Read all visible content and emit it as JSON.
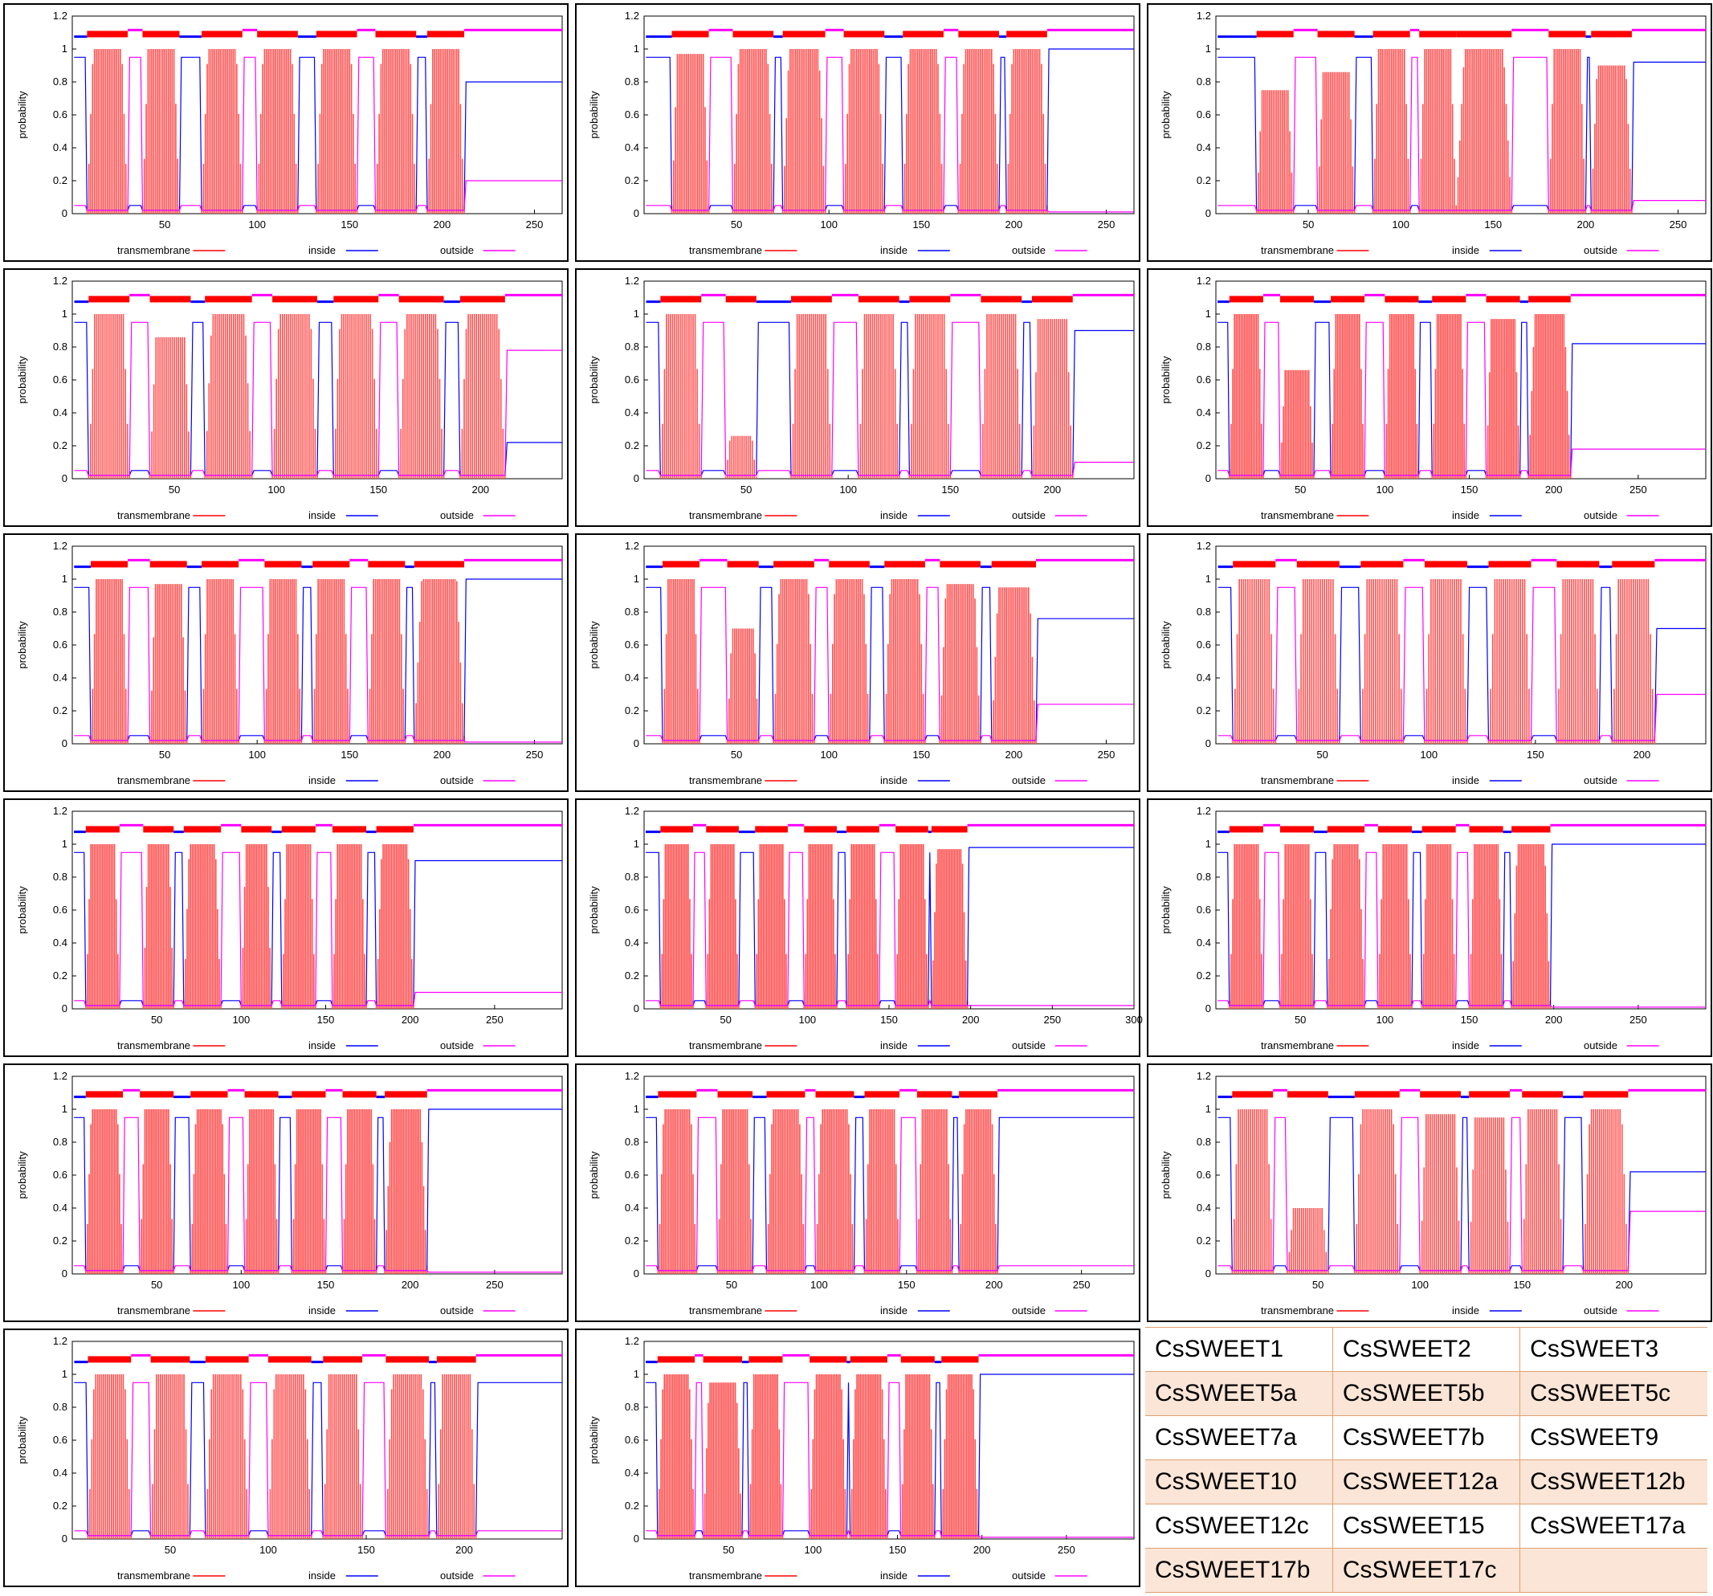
{
  "chart_data": {
    "type": "bar",
    "common": {
      "ylabel": "probability",
      "y_ticks": [
        "0",
        "0.2",
        "0.4",
        "0.6",
        "0.8",
        "1",
        "1.2"
      ],
      "ylim": [
        0,
        1.2
      ],
      "legend": [
        {
          "name": "transmembrane",
          "color": "#ff0000"
        },
        {
          "name": "inside",
          "color": "#0000ff"
        },
        {
          "name": "outside",
          "color": "#ff00ff"
        }
      ]
    },
    "panels": [
      {
        "xmax": 265,
        "xticks": [
          "50",
          "100",
          "150",
          "200",
          "250"
        ],
        "tm": [
          [
            8,
            30
          ],
          [
            38,
            58
          ],
          [
            70,
            92
          ],
          [
            100,
            122
          ],
          [
            132,
            154
          ],
          [
            164,
            186
          ],
          [
            192,
            212
          ]
        ],
        "heights": [
          1,
          1,
          1,
          1,
          1,
          1,
          1
        ],
        "tail_in": 0.8
      },
      {
        "xmax": 265,
        "xticks": [
          "50",
          "100",
          "150",
          "200",
          "250"
        ],
        "tm": [
          [
            15,
            35
          ],
          [
            48,
            70
          ],
          [
            75,
            98
          ],
          [
            108,
            130
          ],
          [
            140,
            162
          ],
          [
            170,
            192
          ],
          [
            196,
            218
          ]
        ],
        "heights": [
          0.97,
          1,
          1,
          1,
          1,
          1,
          1
        ],
        "tail_in": 1.0
      },
      {
        "xmax": 265,
        "xticks": [
          "50",
          "100",
          "150",
          "200",
          "250"
        ],
        "tm": [
          [
            22,
            42
          ],
          [
            55,
            75
          ],
          [
            85,
            105
          ],
          [
            110,
            130
          ],
          [
            130,
            160
          ],
          [
            180,
            200
          ],
          [
            203,
            225
          ]
        ],
        "heights": [
          0.75,
          0.86,
          1,
          1,
          1,
          1,
          0.9
        ],
        "tail_in": 0.92
      },
      {
        "xmax": 240,
        "xticks": [
          "50",
          "100",
          "150",
          "200"
        ],
        "tm": [
          [
            8,
            28
          ],
          [
            38,
            58
          ],
          [
            65,
            88
          ],
          [
            98,
            120
          ],
          [
            128,
            150
          ],
          [
            160,
            182
          ],
          [
            190,
            212
          ]
        ],
        "heights": [
          1,
          0.86,
          1,
          1,
          1,
          1,
          1
        ],
        "tail_in": 0.22
      },
      {
        "xmax": 240,
        "xticks": [
          "50",
          "100",
          "150",
          "200"
        ],
        "tm": [
          [
            8,
            28
          ],
          [
            40,
            55
          ],
          [
            72,
            92
          ],
          [
            105,
            125
          ],
          [
            130,
            150
          ],
          [
            165,
            185
          ],
          [
            190,
            210
          ]
        ],
        "heights": [
          1,
          0.26,
          1,
          1,
          1,
          1,
          0.97
        ],
        "tail_in": 0.9
      },
      {
        "xmax": 290,
        "xticks": [
          "50",
          "100",
          "150",
          "200",
          "250"
        ],
        "tm": [
          [
            8,
            28
          ],
          [
            38,
            58
          ],
          [
            68,
            88
          ],
          [
            100,
            120
          ],
          [
            128,
            148
          ],
          [
            160,
            180
          ],
          [
            185,
            210
          ]
        ],
        "heights": [
          1,
          0.66,
          1,
          1,
          1,
          0.97,
          1
        ],
        "tail_in": 0.82
      },
      {
        "xmax": 265,
        "xticks": [
          "50",
          "100",
          "150",
          "200",
          "250"
        ],
        "tm": [
          [
            10,
            30
          ],
          [
            42,
            62
          ],
          [
            70,
            90
          ],
          [
            104,
            124
          ],
          [
            130,
            150
          ],
          [
            160,
            180
          ],
          [
            185,
            212
          ]
        ],
        "heights": [
          1,
          0.97,
          1,
          1,
          1,
          1,
          1
        ],
        "tail_in": 1.0
      },
      {
        "xmax": 265,
        "xticks": [
          "50",
          "100",
          "150",
          "200",
          "250"
        ],
        "tm": [
          [
            10,
            30
          ],
          [
            45,
            62
          ],
          [
            70,
            92
          ],
          [
            100,
            122
          ],
          [
            130,
            152
          ],
          [
            160,
            182
          ],
          [
            188,
            212
          ]
        ],
        "heights": [
          1,
          0.7,
          1,
          1,
          1,
          0.97,
          0.95
        ],
        "tail_in": 0.76
      },
      {
        "xmax": 230,
        "xticks": [
          "50",
          "100",
          "150",
          "200"
        ],
        "tm": [
          [
            8,
            28
          ],
          [
            38,
            58
          ],
          [
            68,
            88
          ],
          [
            98,
            118
          ],
          [
            128,
            148
          ],
          [
            160,
            180
          ],
          [
            186,
            206
          ]
        ],
        "heights": [
          1,
          1,
          1,
          1,
          1,
          1,
          1
        ],
        "tail_in": 0.7
      },
      {
        "xmax": 290,
        "xticks": [
          "50",
          "100",
          "150",
          "200",
          "250"
        ],
        "tm": [
          [
            8,
            28
          ],
          [
            42,
            60
          ],
          [
            66,
            88
          ],
          [
            100,
            118
          ],
          [
            124,
            144
          ],
          [
            154,
            174
          ],
          [
            180,
            202
          ]
        ],
        "heights": [
          1,
          1,
          1,
          1,
          1,
          1,
          1
        ],
        "tail_in": 0.9
      },
      {
        "xmax": 300,
        "xticks": [
          "50",
          "100",
          "150",
          "200",
          "250",
          "300"
        ],
        "tm": [
          [
            10,
            30
          ],
          [
            38,
            58
          ],
          [
            68,
            88
          ],
          [
            98,
            118
          ],
          [
            124,
            144
          ],
          [
            154,
            174
          ],
          [
            176,
            198
          ]
        ],
        "heights": [
          1,
          1,
          1,
          1,
          1,
          1,
          0.97
        ],
        "tail_in": 0.98
      },
      {
        "xmax": 290,
        "xticks": [
          "50",
          "100",
          "150",
          "200",
          "250"
        ],
        "tm": [
          [
            8,
            28
          ],
          [
            38,
            58
          ],
          [
            66,
            88
          ],
          [
            96,
            116
          ],
          [
            122,
            142
          ],
          [
            150,
            170
          ],
          [
            175,
            198
          ]
        ],
        "heights": [
          1,
          1,
          1,
          1,
          1,
          1,
          1
        ],
        "tail_in": 1.0
      },
      {
        "xmax": 290,
        "xticks": [
          "50",
          "100",
          "150",
          "200",
          "250"
        ],
        "tm": [
          [
            8,
            30
          ],
          [
            40,
            60
          ],
          [
            70,
            92
          ],
          [
            102,
            122
          ],
          [
            130,
            150
          ],
          [
            160,
            180
          ],
          [
            185,
            210
          ]
        ],
        "heights": [
          1,
          1,
          1,
          1,
          1,
          1,
          1
        ],
        "tail_in": 1.0
      },
      {
        "xmax": 280,
        "xticks": [
          "50",
          "100",
          "150",
          "200",
          "250"
        ],
        "tm": [
          [
            8,
            30
          ],
          [
            42,
            62
          ],
          [
            70,
            92
          ],
          [
            98,
            120
          ],
          [
            126,
            146
          ],
          [
            156,
            176
          ],
          [
            180,
            202
          ]
        ],
        "heights": [
          1,
          1,
          1,
          1,
          1,
          1,
          1
        ],
        "tail_in": 0.95
      },
      {
        "xmax": 240,
        "xticks": [
          "50",
          "100",
          "150",
          "200"
        ],
        "tm": [
          [
            8,
            28
          ],
          [
            35,
            55
          ],
          [
            68,
            90
          ],
          [
            100,
            120
          ],
          [
            124,
            144
          ],
          [
            150,
            170
          ],
          [
            180,
            202
          ]
        ],
        "heights": [
          1,
          0.4,
          1,
          0.97,
          0.95,
          1,
          1
        ],
        "tail_in": 0.62
      },
      {
        "xmax": 250,
        "xticks": [
          "50",
          "100",
          "150",
          "200"
        ],
        "tm": [
          [
            8,
            30
          ],
          [
            40,
            60
          ],
          [
            68,
            90
          ],
          [
            100,
            122
          ],
          [
            128,
            148
          ],
          [
            160,
            182
          ],
          [
            186,
            206
          ]
        ],
        "heights": [
          1,
          1,
          1,
          1,
          1,
          1,
          1
        ],
        "tail_in": 0.95
      },
      {
        "xmax": 290,
        "xticks": [
          "50",
          "100",
          "150",
          "200",
          "250"
        ],
        "tm": [
          [
            8,
            30
          ],
          [
            35,
            58
          ],
          [
            62,
            82
          ],
          [
            98,
            120
          ],
          [
            122,
            144
          ],
          [
            152,
            172
          ],
          [
            176,
            198
          ]
        ],
        "heights": [
          1,
          0.95,
          1,
          1,
          1,
          1,
          1
        ],
        "tail_in": 1.0
      }
    ]
  },
  "names": [
    [
      "CsSWEET1",
      "CsSWEET2",
      "CsSWEET3"
    ],
    [
      "CsSWEET5a",
      "CsSWEET5b",
      "CsSWEET5c"
    ],
    [
      "CsSWEET7a",
      "CsSWEET7b",
      "CsSWEET9"
    ],
    [
      "CsSWEET10",
      "CsSWEET12a",
      "CsSWEET12b"
    ],
    [
      "CsSWEET12c",
      "CsSWEET15",
      "CsSWEET17a"
    ],
    [
      "CsSWEET17b",
      "CsSWEET17c",
      ""
    ]
  ]
}
